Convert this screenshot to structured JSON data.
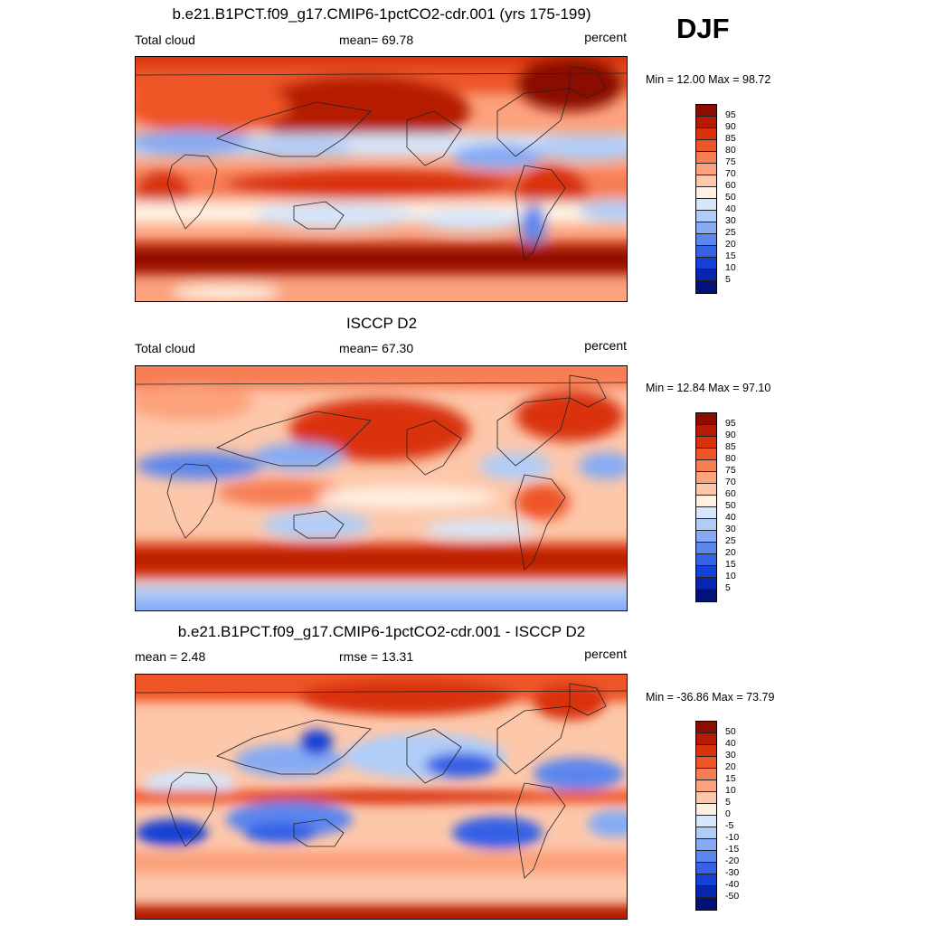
{
  "season": "DJF",
  "palette_abs": [
    "#8b0d02",
    "#b51a05",
    "#d9330b",
    "#ee5527",
    "#f77d52",
    "#fca27c",
    "#fdc7aa",
    "#fff1e2",
    "#d6e6fb",
    "#b0cdf8",
    "#86abf4",
    "#5b86ee",
    "#3561e6",
    "#1441d5",
    "#0826ad",
    "#03117a"
  ],
  "palette_diff": [
    "#8b0d02",
    "#b51a05",
    "#d9330b",
    "#ee5527",
    "#f77d52",
    "#fca27c",
    "#fdc7aa",
    "#fff1e2",
    "#d6e6fb",
    "#b0cdf8",
    "#86abf4",
    "#5b86ee",
    "#3561e6",
    "#1441d5",
    "#0826ad",
    "#03117a"
  ],
  "panels": [
    {
      "title": "b.e21.B1PCT.f09_g17.CMIP6-1pctCO2-cdr.001 (yrs 175-199)",
      "left_label": "Total cloud",
      "center_label": "mean=  69.78",
      "right_label": "percent",
      "minmax": "Min =  12.00 Max =  98.72",
      "colorbar_labels": [
        "95",
        "90",
        "85",
        "80",
        "75",
        "70",
        "60",
        "50",
        "40",
        "30",
        "25",
        "20",
        "15",
        "10",
        "5"
      ]
    },
    {
      "title": "ISCCP D2",
      "left_label": "Total cloud",
      "center_label": "mean=  67.30",
      "right_label": "percent",
      "minmax": "Min =  12.84 Max =  97.10",
      "colorbar_labels": [
        "95",
        "90",
        "85",
        "80",
        "75",
        "70",
        "60",
        "50",
        "40",
        "30",
        "25",
        "20",
        "15",
        "10",
        "5"
      ]
    },
    {
      "title": "b.e21.B1PCT.f09_g17.CMIP6-1pctCO2-cdr.001 - ISCCP D2",
      "left_label": "mean =   2.48",
      "center_label": "rmse =  13.31",
      "right_label": "percent",
      "minmax": "Min = -36.86 Max =  73.79",
      "colorbar_labels": [
        "50",
        "40",
        "30",
        "20",
        "15",
        "10",
        "5",
        "0",
        "-5",
        "-10",
        "-15",
        "-20",
        "-30",
        "-40",
        "-50"
      ]
    }
  ]
}
